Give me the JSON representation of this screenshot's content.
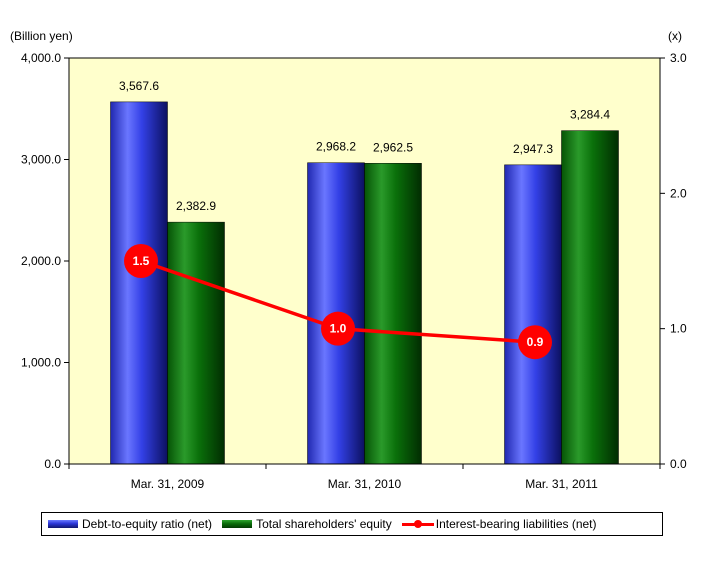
{
  "chart_data": {
    "type": "bar",
    "categories": [
      "Mar. 31, 2009",
      "Mar. 31, 2010",
      "Mar. 31, 2011"
    ],
    "left_axis_unit": "(Billion yen)",
    "right_axis_unit": "(x)",
    "left_axis": {
      "ylim": [
        0,
        4000
      ],
      "ticks": [
        "0.0",
        "1,000.0",
        "2,000.0",
        "3,000.0",
        "4,000.0"
      ]
    },
    "right_axis": {
      "ylim": [
        0,
        3
      ],
      "ticks": [
        "0.0",
        "1.0",
        "2.0",
        "3.0"
      ]
    },
    "series": [
      {
        "name": "Debt-to-equity ratio (net)",
        "kind": "bar",
        "axis": "left",
        "color": "#2a35d8",
        "values": [
          3567.6,
          2968.2,
          2947.3
        ],
        "labels": [
          "3,567.6",
          "2,968.2",
          "2,947.3"
        ]
      },
      {
        "name": "Total shareholders' equity",
        "kind": "bar",
        "axis": "left",
        "color": "#0a6d0a",
        "values": [
          2382.9,
          2962.5,
          3284.4
        ],
        "labels": [
          "2,382.9",
          "2,962.5",
          "3,284.4"
        ]
      },
      {
        "name": "Interest-bearing liabilities (net)",
        "kind": "line",
        "axis": "right",
        "color": "#ff0000",
        "values": [
          1.5,
          1.0,
          0.9
        ],
        "labels": [
          "1.5",
          "1.0",
          "0.9"
        ]
      }
    ],
    "plot_background": "#ffffcc",
    "grid": false,
    "legend_position": "bottom"
  }
}
